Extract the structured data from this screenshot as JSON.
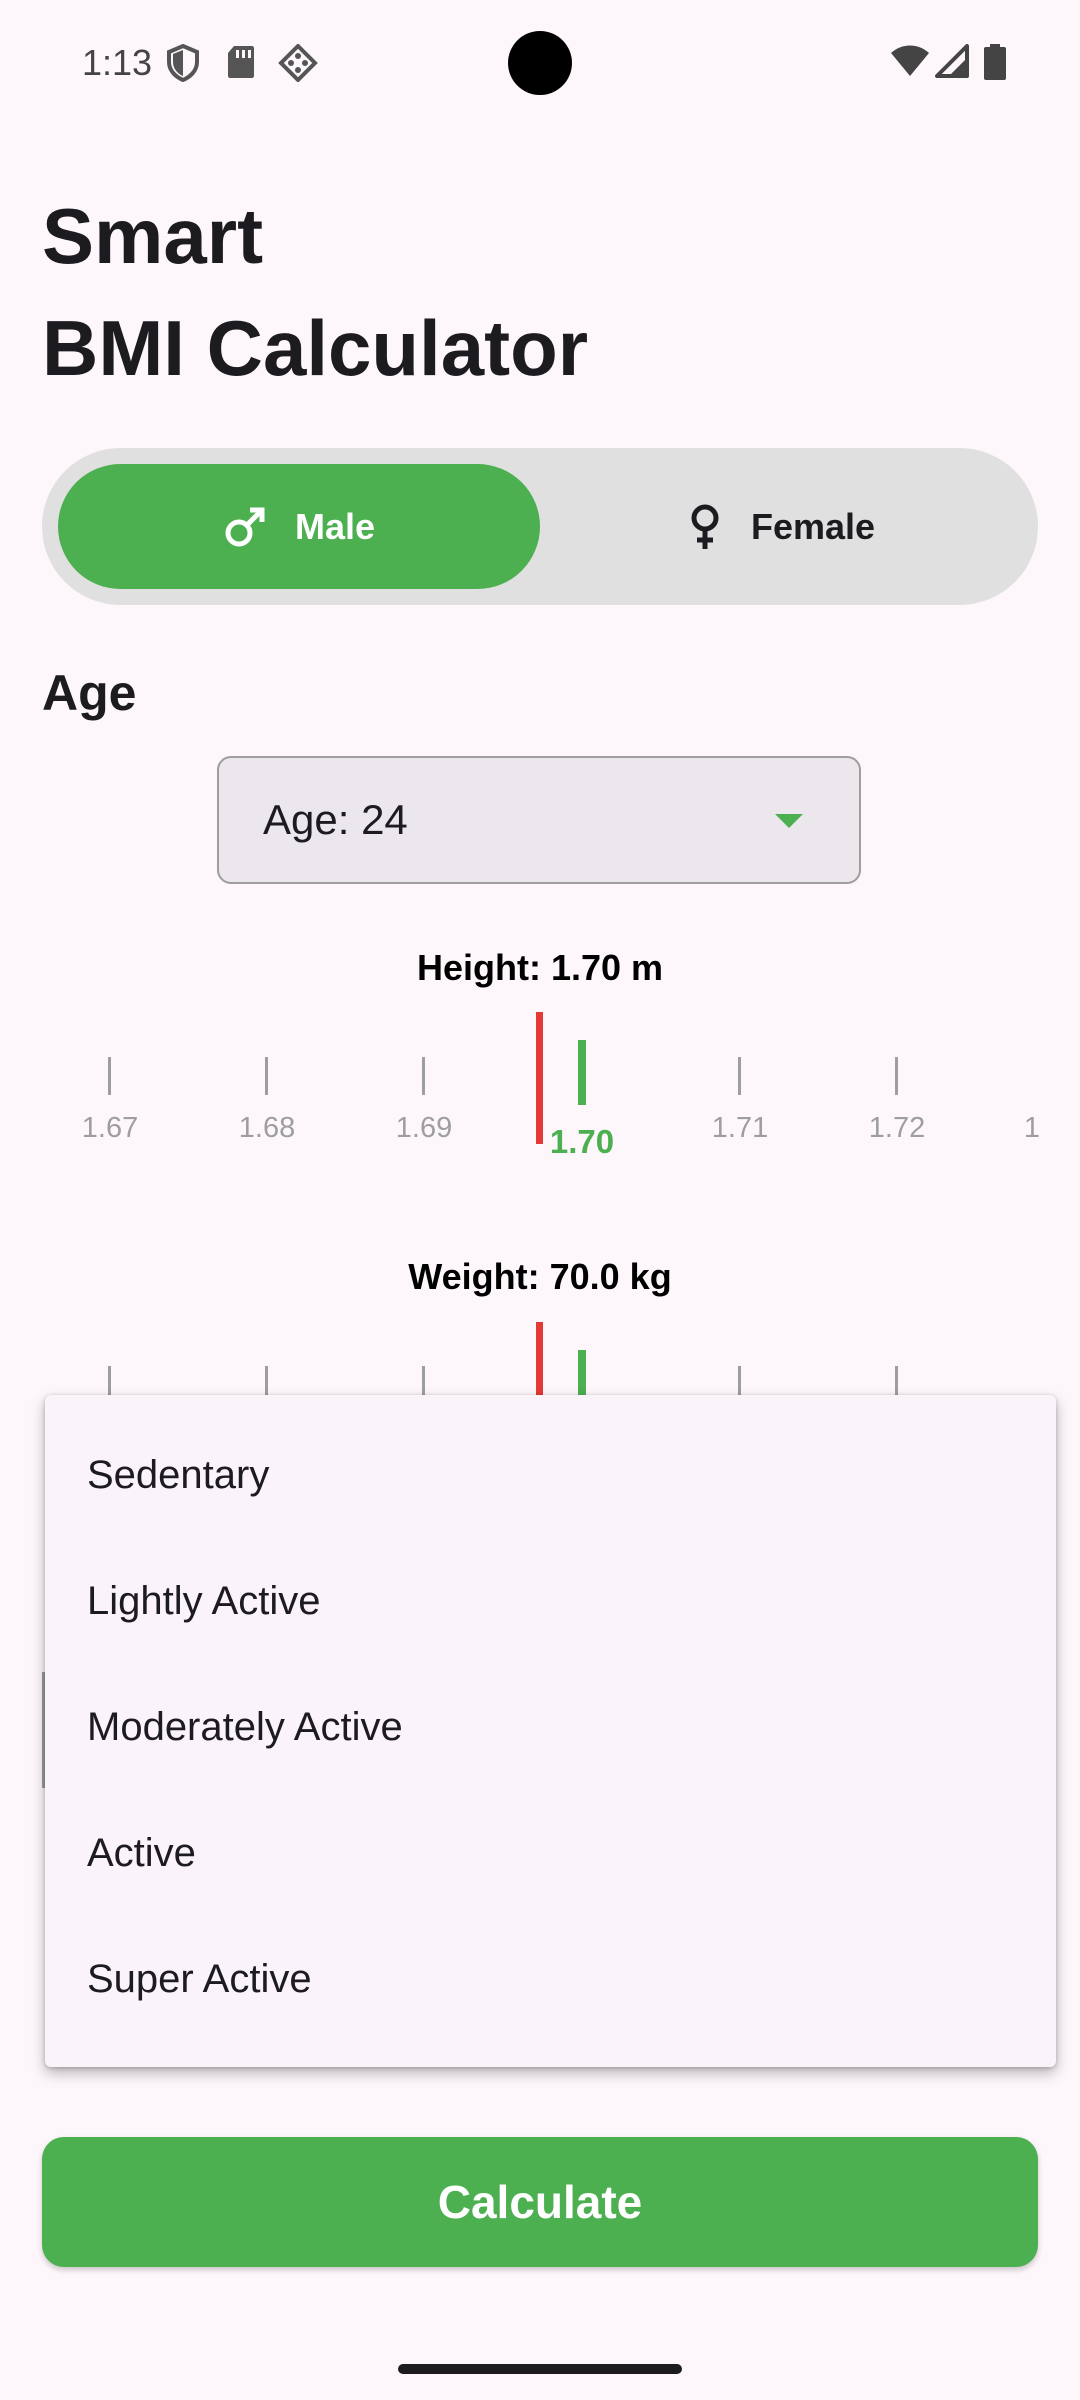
{
  "status_bar": {
    "time": "1:13"
  },
  "title": {
    "line1": "Smart",
    "line2": "BMI Calculator"
  },
  "gender": {
    "male_label": "Male",
    "female_label": "Female",
    "selected": "Male"
  },
  "age": {
    "section_label": "Age",
    "value_label": "Age: 24"
  },
  "height": {
    "label": "Height: 1.70 m",
    "ticks": [
      "1.67",
      "1.68",
      "1.69",
      "1.70",
      "1.71",
      "1.72",
      "1"
    ],
    "selected": "1.70"
  },
  "weight": {
    "label": "Weight: 70.0 kg"
  },
  "activity_menu": {
    "options": [
      "Sedentary",
      "Lightly Active",
      "Moderately Active",
      "Active",
      "Super Active"
    ]
  },
  "calculate_label": "Calculate",
  "colors": {
    "accent": "#4CAF50",
    "marker": "#E53935",
    "background": "#FDF7FC"
  }
}
